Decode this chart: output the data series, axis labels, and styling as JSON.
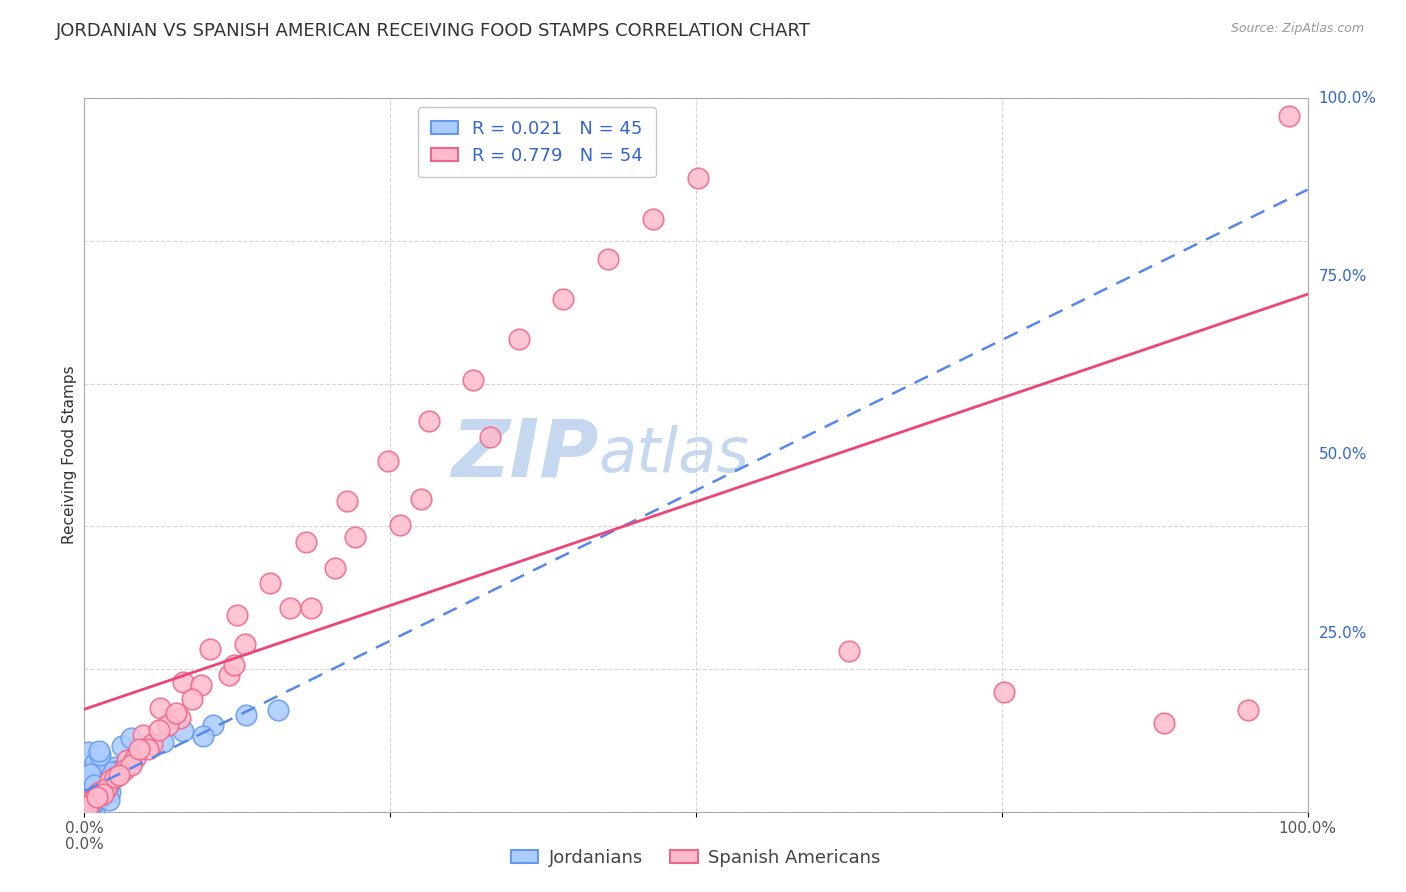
{
  "title": "JORDANIAN VS SPANISH AMERICAN RECEIVING FOOD STAMPS CORRELATION CHART",
  "source": "Source: ZipAtlas.com",
  "ylabel": "Receiving Food Stamps",
  "xlim": [
    0,
    100
  ],
  "ylim": [
    0,
    100
  ],
  "xticks": [
    0,
    25,
    50,
    75,
    100
  ],
  "xticklabels": [
    "0.0%",
    "",
    "",
    "",
    "100.0%"
  ],
  "yticks": [
    0,
    25,
    50,
    75,
    100
  ],
  "yticklabels": [
    "",
    "25.0%",
    "50.0%",
    "75.0%",
    "100.0%"
  ],
  "jordanians_R": 0.021,
  "jordanians_N": 45,
  "spanish_R": 0.779,
  "spanish_N": 54,
  "jordanians_edge_color": "#6699ee",
  "jordanians_face_color": "#aaccff",
  "spanish_edge_color": "#ee6688",
  "spanish_face_color": "#ffbbcc",
  "trend_blue_color": "#5588ee",
  "trend_pink_color": "#ee4477",
  "watermark_zip": "ZIP",
  "watermark_atlas": "atlas",
  "watermark_color": "#c5d8f0",
  "background_color": "#ffffff",
  "legend_text_color": "#3366cc",
  "grid_color": "#cccccc",
  "title_fontsize": 13,
  "axis_label_fontsize": 11,
  "tick_fontsize": 11,
  "legend_fontsize": 13,
  "source_fontsize": 9,
  "jordanians_x": [
    0.3,
    0.5,
    0.8,
    1.0,
    1.2,
    1.5,
    0.4,
    0.7,
    1.8,
    2.1,
    0.6,
    1.1,
    1.4,
    0.9,
    2.5,
    0.2,
    1.7,
    0.5,
    2.8,
    1.3,
    0.4,
    1.9,
    1.6,
    0.3,
    0.8,
    2.2,
    0.6,
    1.0,
    0.7,
    3.1,
    1.5,
    0.9,
    2.0,
    0.5,
    3.8,
    0.4,
    1.3,
    0.8,
    10.5,
    1.2,
    8.1,
    13.2,
    6.4,
    15.8,
    9.7
  ],
  "jordanians_y": [
    1.2,
    2.1,
    0.8,
    3.5,
    1.8,
    4.2,
    2.5,
    1.0,
    5.1,
    2.8,
    3.9,
    1.5,
    4.8,
    0.6,
    6.2,
    2.0,
    3.3,
    4.7,
    5.8,
    1.9,
    7.1,
    3.6,
    2.4,
    8.3,
    1.3,
    5.5,
    0.9,
    4.1,
    3.0,
    9.2,
    2.7,
    6.8,
    1.6,
    5.3,
    10.4,
    0.5,
    7.9,
    3.8,
    12.1,
    8.5,
    11.3,
    13.5,
    9.8,
    14.2,
    10.6
  ],
  "spanish_x": [
    0.5,
    1.2,
    2.1,
    3.5,
    4.8,
    6.2,
    8.1,
    10.3,
    12.5,
    15.2,
    18.1,
    21.5,
    24.8,
    28.2,
    31.8,
    35.5,
    39.1,
    42.8,
    46.5,
    50.2,
    1.8,
    3.2,
    5.5,
    7.8,
    2.5,
    4.1,
    0.8,
    6.8,
    9.5,
    13.1,
    1.5,
    7.5,
    22.1,
    27.5,
    33.2,
    5.2,
    3.8,
    16.8,
    11.8,
    20.5,
    62.5,
    75.2,
    88.3,
    95.1,
    98.5,
    0.3,
    1.0,
    2.8,
    4.5,
    6.1,
    8.8,
    12.2,
    18.5,
    25.8
  ],
  "spanish_y": [
    1.5,
    2.8,
    4.5,
    7.2,
    10.8,
    14.5,
    18.2,
    22.8,
    27.5,
    32.1,
    37.8,
    43.5,
    49.2,
    54.8,
    60.5,
    66.2,
    71.8,
    77.5,
    83.1,
    88.8,
    3.2,
    5.8,
    9.5,
    13.2,
    4.8,
    7.5,
    1.8,
    12.2,
    17.8,
    23.5,
    2.5,
    13.8,
    38.5,
    43.8,
    52.5,
    8.8,
    6.5,
    28.5,
    19.2,
    34.2,
    22.5,
    16.8,
    12.5,
    14.2,
    97.5,
    0.8,
    2.1,
    5.2,
    8.8,
    11.5,
    15.8,
    20.5,
    28.5,
    40.2
  ]
}
